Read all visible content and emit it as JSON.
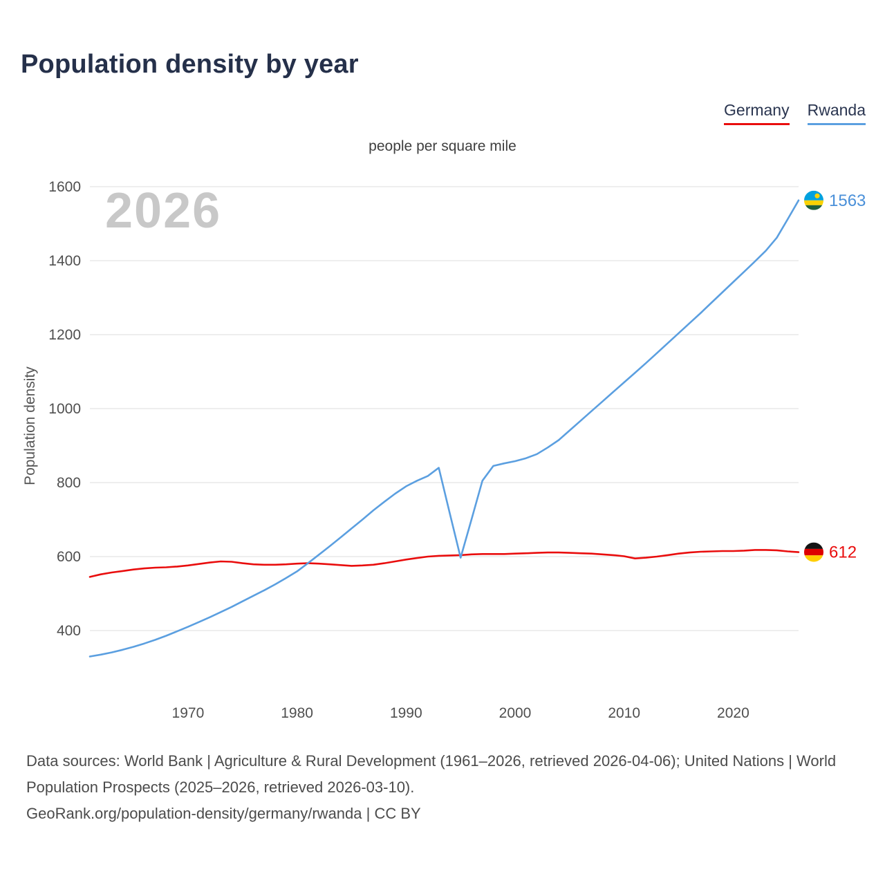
{
  "header": {
    "title": "Population density by year",
    "subtitle": "people per square mile"
  },
  "legend": {
    "items": [
      {
        "label": "Germany",
        "color": "#e90d0d"
      },
      {
        "label": "Rwanda",
        "color": "#5b9fe0"
      }
    ]
  },
  "watermark": "2026",
  "footer": {
    "sources": "Data sources: World Bank | Agriculture & Rural Development (1961–2026, retrieved 2026-04-06); United Nations | World Population Prospects (2025–2026, retrieved 2026-03-10).",
    "attribution": "GeoRank.org/population-density/germany/rwanda | CC BY"
  },
  "chart_data": {
    "type": "line",
    "title": "Population density by year",
    "subtitle": "people per square mile",
    "ylabel": "Population density",
    "watermark": "2026",
    "grid": true,
    "legend_position": "top-right",
    "xlim": [
      1961,
      2026
    ],
    "ylim_display": [
      400,
      1600
    ],
    "y_ticks": [
      400,
      600,
      800,
      1000,
      1200,
      1400,
      1600
    ],
    "x_ticks": [
      1970,
      1980,
      1990,
      2000,
      2010,
      2020
    ],
    "x": [
      1961,
      1962,
      1963,
      1964,
      1965,
      1966,
      1967,
      1968,
      1969,
      1970,
      1971,
      1972,
      1973,
      1974,
      1975,
      1976,
      1977,
      1978,
      1979,
      1980,
      1981,
      1982,
      1983,
      1984,
      1985,
      1986,
      1987,
      1988,
      1989,
      1990,
      1991,
      1992,
      1993,
      1994,
      1995,
      1996,
      1997,
      1998,
      1999,
      2000,
      2001,
      2002,
      2003,
      2004,
      2005,
      2006,
      2007,
      2008,
      2009,
      2010,
      2011,
      2012,
      2013,
      2014,
      2015,
      2016,
      2017,
      2018,
      2019,
      2020,
      2021,
      2022,
      2023,
      2024,
      2025,
      2026
    ],
    "series": [
      {
        "name": "Germany",
        "color": "#e90d0d",
        "label_color": "#e90d0d",
        "end_label": "612",
        "flag": {
          "name": "germany-flag-icon",
          "stripes": [
            {
              "color": "#141414",
              "h": 0.3333
            },
            {
              "color": "#dd0000",
              "h": 0.3334
            },
            {
              "color": "#ffce00",
              "h": 0.3333
            }
          ]
        },
        "values": [
          545,
          552,
          557,
          561,
          565,
          568,
          570,
          571,
          573,
          576,
          580,
          584,
          587,
          586,
          582,
          579,
          578,
          578,
          579,
          581,
          582,
          581,
          579,
          577,
          575,
          576,
          578,
          582,
          587,
          592,
          596,
          600,
          602,
          603,
          604,
          606,
          607,
          607,
          607,
          608,
          609,
          610,
          611,
          611,
          610,
          609,
          608,
          606,
          604,
          601,
          595,
          597,
          600,
          604,
          608,
          611,
          613,
          614,
          615,
          615,
          616,
          618,
          618,
          617,
          614,
          612
        ]
      },
      {
        "name": "Rwanda",
        "color": "#5b9fe0",
        "label_color": "#4a90d9",
        "end_label": "1563",
        "flag": {
          "name": "rwanda-flag-icon",
          "stripes": [
            {
              "color": "#00a1de",
              "h": 0.5
            },
            {
              "color": "#fad201",
              "h": 0.25
            },
            {
              "color": "#20603d",
              "h": 0.25
            }
          ],
          "sun": "#fad201"
        },
        "values": [
          330,
          335,
          341,
          348,
          356,
          365,
          375,
          386,
          398,
          410,
          423,
          436,
          450,
          464,
          479,
          494,
          509,
          525,
          542,
          560,
          582,
          605,
          628,
          652,
          676,
          700,
          725,
          748,
          770,
          790,
          805,
          818,
          840,
          718,
          597,
          700,
          805,
          845,
          852,
          858,
          866,
          877,
          895,
          915,
          941,
          967,
          993,
          1019,
          1045,
          1071,
          1097,
          1123,
          1150,
          1177,
          1204,
          1231,
          1258,
          1286,
          1314,
          1342,
          1370,
          1398,
          1427,
          1462,
          1512,
          1563
        ]
      }
    ]
  }
}
